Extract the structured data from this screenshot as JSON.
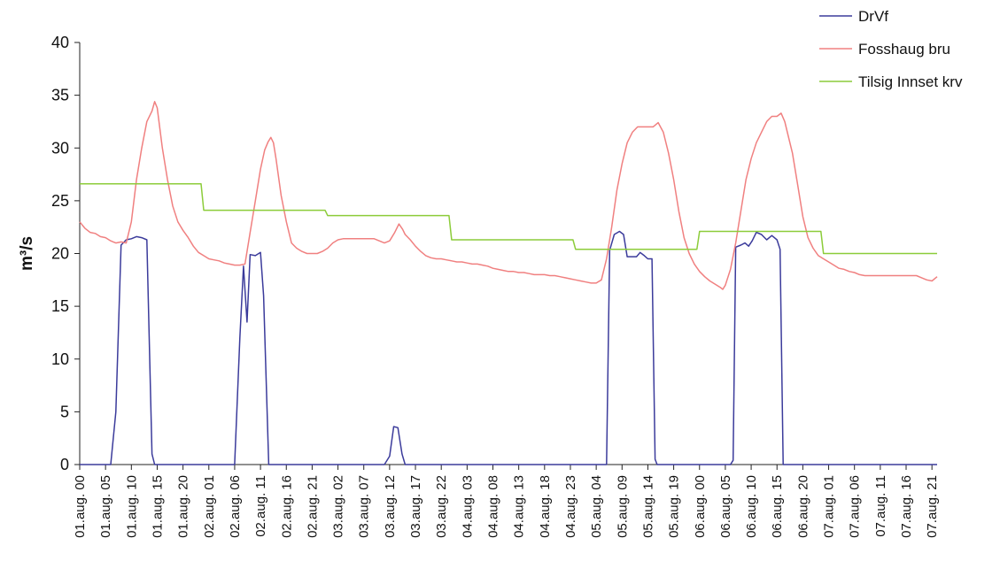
{
  "chart_data": {
    "type": "line",
    "title": "",
    "xlabel": "",
    "ylabel": "m³/s",
    "ylim": [
      0,
      40
    ],
    "yticks": [
      0,
      5,
      10,
      15,
      20,
      25,
      30,
      35,
      40
    ],
    "grid": false,
    "legend_position": "top-right",
    "x_unit": "hour",
    "x_range": [
      0,
      166
    ],
    "xtick_hours": [
      0,
      5,
      10,
      15,
      20,
      25,
      30,
      35,
      40,
      45,
      50,
      55,
      60,
      65,
      70,
      75,
      80,
      85,
      90,
      95,
      100,
      105,
      110,
      115,
      120,
      125,
      130,
      135,
      140,
      145,
      150,
      155,
      160,
      165
    ],
    "xtick_labels": [
      "01.aug. 00",
      "01.aug. 05",
      "01.aug. 10",
      "01.aug. 15",
      "01.aug. 20",
      "02.aug. 01",
      "02.aug. 06",
      "02.aug. 11",
      "02.aug. 16",
      "02.aug. 21",
      "03.aug. 02",
      "03.aug. 07",
      "03.aug. 12",
      "03.aug. 17",
      "03.aug. 22",
      "04.aug. 03",
      "04.aug. 08",
      "04.aug. 13",
      "04.aug. 18",
      "04.aug. 23",
      "05.aug. 04",
      "05.aug. 09",
      "05.aug. 14",
      "05.aug. 19",
      "06.aug. 00",
      "06.aug. 05",
      "06.aug. 10",
      "06.aug. 15",
      "06.aug. 20",
      "07.aug. 01",
      "07.aug. 06",
      "07.aug. 11",
      "07.aug. 16",
      "07.aug. 21"
    ],
    "series": [
      {
        "name": "DrVf",
        "color": "#3b3b9b",
        "points": [
          [
            0,
            0
          ],
          [
            6,
            0
          ],
          [
            7,
            5
          ],
          [
            8,
            20.8
          ],
          [
            9,
            21.3
          ],
          [
            10,
            21.4
          ],
          [
            11,
            21.6
          ],
          [
            12,
            21.5
          ],
          [
            13,
            21.3
          ],
          [
            14,
            1
          ],
          [
            14.5,
            0
          ],
          [
            30,
            0
          ],
          [
            31,
            12
          ],
          [
            31.7,
            18.8
          ],
          [
            32.4,
            13.5
          ],
          [
            33,
            19.9
          ],
          [
            34,
            19.8
          ],
          [
            35,
            20.1
          ],
          [
            35.6,
            16
          ],
          [
            36.6,
            0
          ],
          [
            59,
            0
          ],
          [
            60,
            0.8
          ],
          [
            60.8,
            3.6
          ],
          [
            61.6,
            3.5
          ],
          [
            62.4,
            1
          ],
          [
            63,
            0
          ],
          [
            102,
            0
          ],
          [
            102.6,
            20.3
          ],
          [
            103.5,
            21.8
          ],
          [
            104.5,
            22.1
          ],
          [
            105.3,
            21.8
          ],
          [
            106,
            19.7
          ],
          [
            107,
            19.7
          ],
          [
            107.8,
            19.7
          ],
          [
            108.5,
            20.1
          ],
          [
            109.3,
            19.8
          ],
          [
            110,
            19.5
          ],
          [
            110.8,
            19.5
          ],
          [
            111.4,
            0.5
          ],
          [
            111.8,
            0
          ],
          [
            126,
            0
          ],
          [
            126.5,
            0.4
          ],
          [
            127,
            20.6
          ],
          [
            128,
            20.8
          ],
          [
            128.8,
            21
          ],
          [
            129.5,
            20.7
          ],
          [
            130.2,
            21.2
          ],
          [
            131,
            22
          ],
          [
            132,
            21.8
          ],
          [
            133,
            21.3
          ],
          [
            134,
            21.7
          ],
          [
            135,
            21.3
          ],
          [
            135.6,
            20.4
          ],
          [
            136.2,
            0
          ],
          [
            166,
            0
          ]
        ]
      },
      {
        "name": "Fosshaug bru",
        "color": "#f08080",
        "points": [
          [
            0,
            23
          ],
          [
            1,
            22.4
          ],
          [
            2,
            22
          ],
          [
            3,
            21.9
          ],
          [
            4,
            21.6
          ],
          [
            5,
            21.5
          ],
          [
            6,
            21.2
          ],
          [
            7,
            21
          ],
          [
            8,
            21.1
          ],
          [
            9,
            21
          ],
          [
            10,
            23
          ],
          [
            11,
            27
          ],
          [
            12,
            30
          ],
          [
            13,
            32.5
          ],
          [
            14,
            33.5
          ],
          [
            14.5,
            34.4
          ],
          [
            15,
            33.8
          ],
          [
            16,
            30
          ],
          [
            17,
            27
          ],
          [
            18,
            24.5
          ],
          [
            19,
            23
          ],
          [
            20,
            22.2
          ],
          [
            21,
            21.5
          ],
          [
            22,
            20.7
          ],
          [
            23,
            20.1
          ],
          [
            24,
            19.8
          ],
          [
            25,
            19.5
          ],
          [
            26,
            19.4
          ],
          [
            27,
            19.3
          ],
          [
            28,
            19.1
          ],
          [
            29,
            19
          ],
          [
            30,
            18.9
          ],
          [
            31,
            18.9
          ],
          [
            32,
            19
          ],
          [
            33,
            22
          ],
          [
            34,
            25
          ],
          [
            35,
            28
          ],
          [
            35.8,
            29.8
          ],
          [
            36.5,
            30.6
          ],
          [
            37,
            31
          ],
          [
            37.5,
            30.5
          ],
          [
            38,
            29
          ],
          [
            39,
            25.5
          ],
          [
            40,
            23
          ],
          [
            41,
            21
          ],
          [
            42,
            20.5
          ],
          [
            43,
            20.2
          ],
          [
            44,
            20
          ],
          [
            45,
            20
          ],
          [
            46,
            20
          ],
          [
            47,
            20.2
          ],
          [
            48,
            20.5
          ],
          [
            49,
            21
          ],
          [
            50,
            21.3
          ],
          [
            51,
            21.4
          ],
          [
            52,
            21.4
          ],
          [
            53,
            21.4
          ],
          [
            54,
            21.4
          ],
          [
            55,
            21.4
          ],
          [
            56,
            21.4
          ],
          [
            57,
            21.4
          ],
          [
            58,
            21.2
          ],
          [
            59,
            21
          ],
          [
            60,
            21.2
          ],
          [
            61,
            22
          ],
          [
            61.8,
            22.8
          ],
          [
            62.5,
            22.3
          ],
          [
            63,
            21.8
          ],
          [
            64,
            21.3
          ],
          [
            65,
            20.7
          ],
          [
            66,
            20.2
          ],
          [
            67,
            19.8
          ],
          [
            68,
            19.6
          ],
          [
            69,
            19.5
          ],
          [
            70,
            19.5
          ],
          [
            71,
            19.4
          ],
          [
            72,
            19.3
          ],
          [
            73,
            19.2
          ],
          [
            74,
            19.2
          ],
          [
            75,
            19.1
          ],
          [
            76,
            19
          ],
          [
            77,
            19
          ],
          [
            78,
            18.9
          ],
          [
            79,
            18.8
          ],
          [
            80,
            18.6
          ],
          [
            81,
            18.5
          ],
          [
            82,
            18.4
          ],
          [
            83,
            18.3
          ],
          [
            84,
            18.3
          ],
          [
            85,
            18.2
          ],
          [
            86,
            18.2
          ],
          [
            87,
            18.1
          ],
          [
            88,
            18
          ],
          [
            89,
            18
          ],
          [
            90,
            18
          ],
          [
            91,
            17.9
          ],
          [
            92,
            17.9
          ],
          [
            93,
            17.8
          ],
          [
            94,
            17.7
          ],
          [
            95,
            17.6
          ],
          [
            96,
            17.5
          ],
          [
            97,
            17.4
          ],
          [
            98,
            17.3
          ],
          [
            99,
            17.2
          ],
          [
            100,
            17.2
          ],
          [
            101,
            17.5
          ],
          [
            102,
            19.5
          ],
          [
            103,
            22.5
          ],
          [
            104,
            26
          ],
          [
            105,
            28.5
          ],
          [
            106,
            30.5
          ],
          [
            107,
            31.5
          ],
          [
            108,
            32
          ],
          [
            109,
            32
          ],
          [
            110,
            32
          ],
          [
            111,
            32
          ],
          [
            112,
            32.4
          ],
          [
            113,
            31.5
          ],
          [
            114,
            29.5
          ],
          [
            115,
            27
          ],
          [
            116,
            24
          ],
          [
            117,
            21.5
          ],
          [
            118,
            20
          ],
          [
            119,
            19
          ],
          [
            120,
            18.3
          ],
          [
            121,
            17.8
          ],
          [
            122,
            17.4
          ],
          [
            123,
            17.1
          ],
          [
            124,
            16.8
          ],
          [
            124.5,
            16.6
          ],
          [
            125,
            17
          ],
          [
            126,
            18.5
          ],
          [
            127,
            21
          ],
          [
            128,
            24
          ],
          [
            129,
            27
          ],
          [
            130,
            29
          ],
          [
            131,
            30.5
          ],
          [
            132,
            31.5
          ],
          [
            133,
            32.5
          ],
          [
            134,
            33
          ],
          [
            135,
            33
          ],
          [
            135.8,
            33.3
          ],
          [
            136.5,
            32.5
          ],
          [
            137,
            31.5
          ],
          [
            138,
            29.5
          ],
          [
            139,
            26.5
          ],
          [
            140,
            23.5
          ],
          [
            141,
            21.5
          ],
          [
            142,
            20.5
          ],
          [
            143,
            19.8
          ],
          [
            144,
            19.5
          ],
          [
            145,
            19.2
          ],
          [
            146,
            18.9
          ],
          [
            147,
            18.6
          ],
          [
            148,
            18.5
          ],
          [
            149,
            18.3
          ],
          [
            150,
            18.2
          ],
          [
            151,
            18
          ],
          [
            152,
            17.9
          ],
          [
            153,
            17.9
          ],
          [
            154,
            17.9
          ],
          [
            155,
            17.9
          ],
          [
            156,
            17.9
          ],
          [
            157,
            17.9
          ],
          [
            158,
            17.9
          ],
          [
            159,
            17.9
          ],
          [
            160,
            17.9
          ],
          [
            161,
            17.9
          ],
          [
            162,
            17.9
          ],
          [
            163,
            17.7
          ],
          [
            164,
            17.5
          ],
          [
            165,
            17.4
          ],
          [
            166,
            17.8
          ]
        ]
      },
      {
        "name": "Tilsig Innset krv",
        "color": "#8ccc3a",
        "points": [
          [
            0,
            26.6
          ],
          [
            23.5,
            26.6
          ],
          [
            24,
            24.1
          ],
          [
            47.5,
            24.1
          ],
          [
            48,
            23.6
          ],
          [
            71.5,
            23.6
          ],
          [
            72,
            21.3
          ],
          [
            95.5,
            21.3
          ],
          [
            96,
            20.4
          ],
          [
            119.5,
            20.4
          ],
          [
            120,
            22.1
          ],
          [
            143.5,
            22.1
          ],
          [
            144,
            20
          ],
          [
            166,
            20
          ]
        ]
      }
    ]
  }
}
